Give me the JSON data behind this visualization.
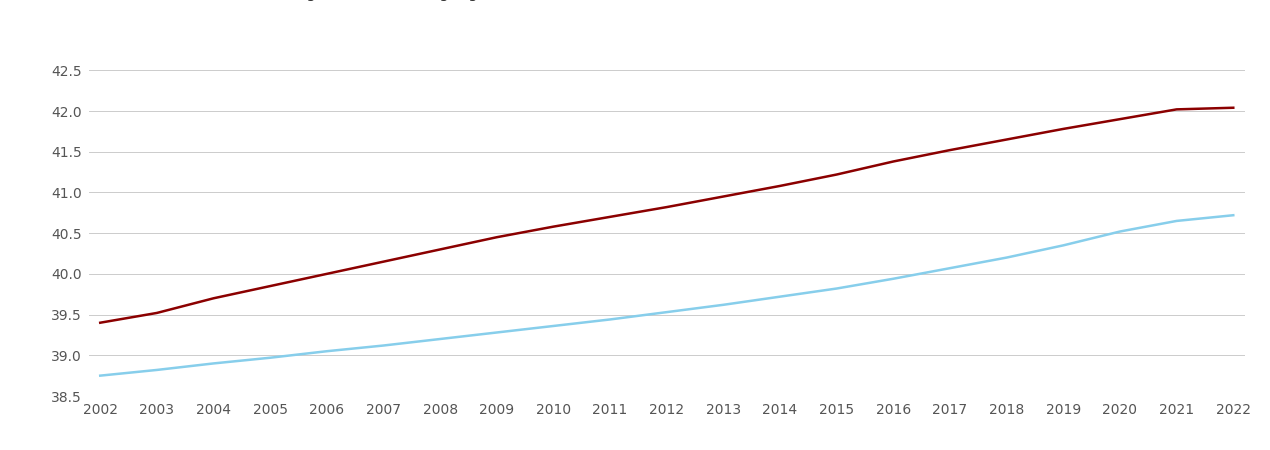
{
  "years": [
    2002,
    2003,
    2004,
    2005,
    2006,
    2007,
    2008,
    2009,
    2010,
    2011,
    2012,
    2013,
    2014,
    2015,
    2016,
    2017,
    2018,
    2019,
    2020,
    2021,
    2022
  ],
  "north_east": [
    39.4,
    39.52,
    39.7,
    39.85,
    40.0,
    40.15,
    40.3,
    40.45,
    40.58,
    40.7,
    40.82,
    40.95,
    41.08,
    41.22,
    41.38,
    41.52,
    41.65,
    41.78,
    41.9,
    42.02,
    42.04
  ],
  "england_wales": [
    38.75,
    38.82,
    38.9,
    38.97,
    39.05,
    39.12,
    39.2,
    39.28,
    39.36,
    39.44,
    39.53,
    39.62,
    39.72,
    39.82,
    39.94,
    40.07,
    40.2,
    40.35,
    40.52,
    40.65,
    40.72
  ],
  "north_east_color": "#8B0000",
  "england_wales_color": "#87CEEB",
  "ylim": [
    38.5,
    42.7
  ],
  "yticks": [
    38.5,
    39.0,
    39.5,
    40.0,
    40.5,
    41.0,
    41.5,
    42.0,
    42.5
  ],
  "background_color": "#ffffff",
  "grid_color": "#cccccc",
  "line_width": 1.8,
  "legend_fontsize": 11,
  "tick_fontsize": 10,
  "tick_color": "#555555"
}
